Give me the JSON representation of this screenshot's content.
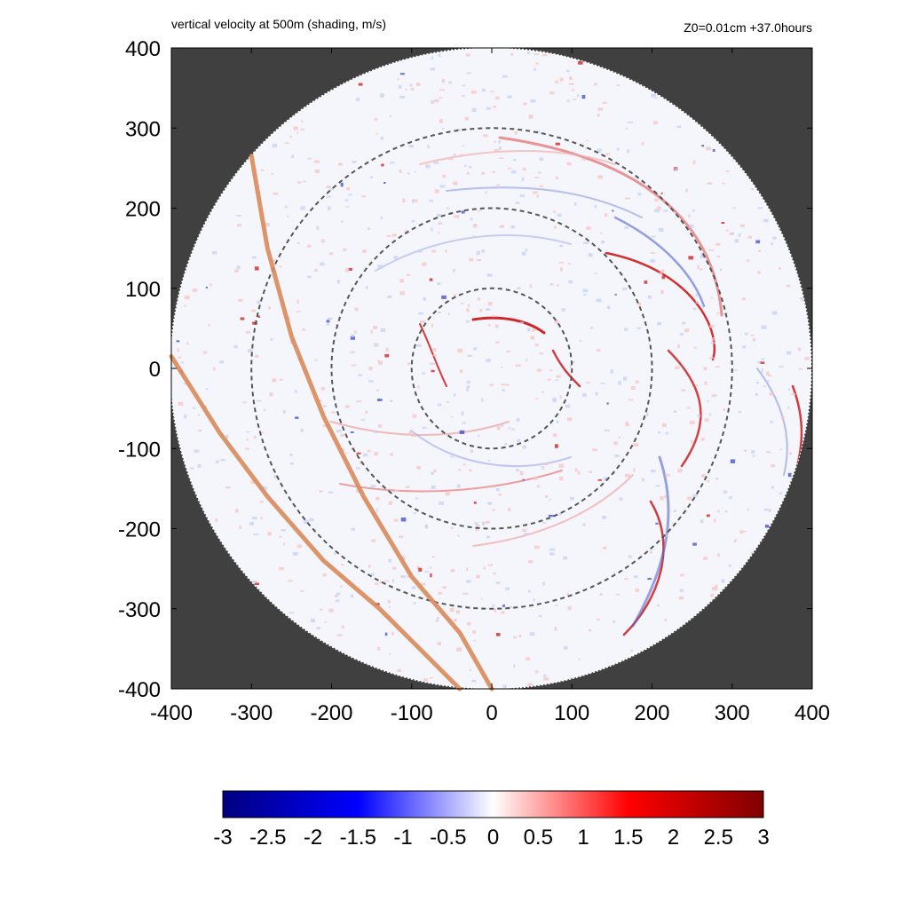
{
  "chart_data": {
    "type": "heatmap",
    "title": "vertical velocity at 500m (shading, m/s)",
    "subtitle": "Z0=0.01cm  +37.0hours",
    "xlabel": "",
    "ylabel": "",
    "xlim": [
      -400,
      400
    ],
    "ylim": [
      -400,
      400
    ],
    "x_ticks": [
      "-400",
      "-300",
      "-200",
      "-100",
      "0",
      "100",
      "200",
      "300",
      "400"
    ],
    "y_ticks": [
      "400",
      "300",
      "200",
      "100",
      "0",
      "-100",
      "-200",
      "-300",
      "-400"
    ],
    "domain_radius": 400,
    "range_rings": [
      100,
      200,
      300
    ],
    "colorbar": {
      "min": -3,
      "max": 3,
      "labels": [
        "-3",
        "-2.5",
        "-2",
        "-1.5",
        "-1",
        "-0.5",
        "0",
        "0.5",
        "1",
        "1.5",
        "2",
        "2.5",
        "3"
      ],
      "colors": [
        "#00007f",
        "#0000ff",
        "#ffffff",
        "#ff0000",
        "#7f0000"
      ]
    },
    "colors": {
      "background": "#404040",
      "ring": "#555555",
      "track": "#d9895a"
    },
    "tracks": [
      {
        "points": [
          [
            -300,
            265
          ],
          [
            -280,
            150
          ],
          [
            -250,
            40
          ],
          [
            -210,
            -60
          ],
          [
            -160,
            -160
          ],
          [
            -100,
            -260
          ],
          [
            -40,
            -330
          ],
          [
            0,
            -400
          ]
        ]
      },
      {
        "points": [
          [
            -400,
            15
          ],
          [
            -340,
            -80
          ],
          [
            -280,
            -160
          ],
          [
            -210,
            -240
          ],
          [
            -140,
            -300
          ],
          [
            -80,
            -360
          ],
          [
            -40,
            -400
          ]
        ]
      }
    ]
  }
}
